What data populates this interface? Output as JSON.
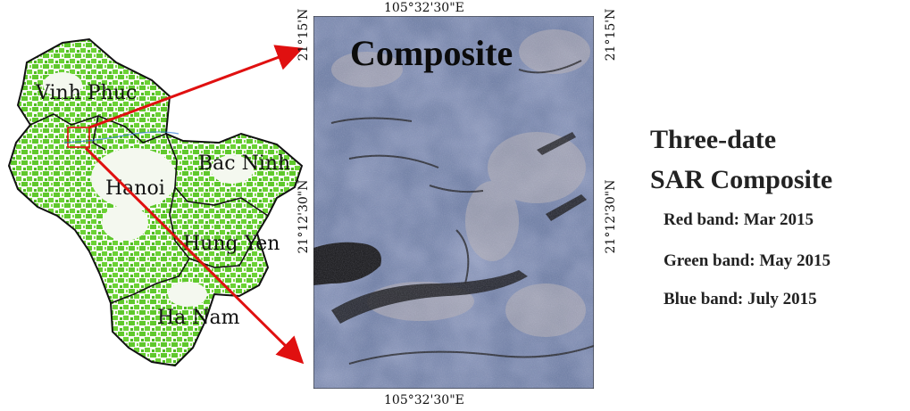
{
  "locator_map": {
    "regions": [
      "Vinh Phuc",
      "Hanoi",
      "Bac Ninh",
      "Hung Yen",
      "Ha Nam"
    ]
  },
  "composite_panel": {
    "title": "Composite",
    "coord_top": "105°32'30\"E",
    "coord_bottom": "105°32'30\"E",
    "coord_left_top": "21°15'N",
    "coord_left_mid": "21°12'30\"N",
    "coord_right_top": "21°15'N",
    "coord_right_mid": "21°12'30\"N"
  },
  "legend": {
    "title_line1": "Three-date",
    "title_line2": "SAR Composite",
    "bands": [
      "Red band: Mar 2015",
      "Green band: May 2015",
      "Blue band: July 2015"
    ]
  },
  "colors": {
    "map_vegetation": "#5fc82c",
    "province_border": "#111111",
    "arrow": "#e01010",
    "composite_base": "#6f7fa6"
  }
}
